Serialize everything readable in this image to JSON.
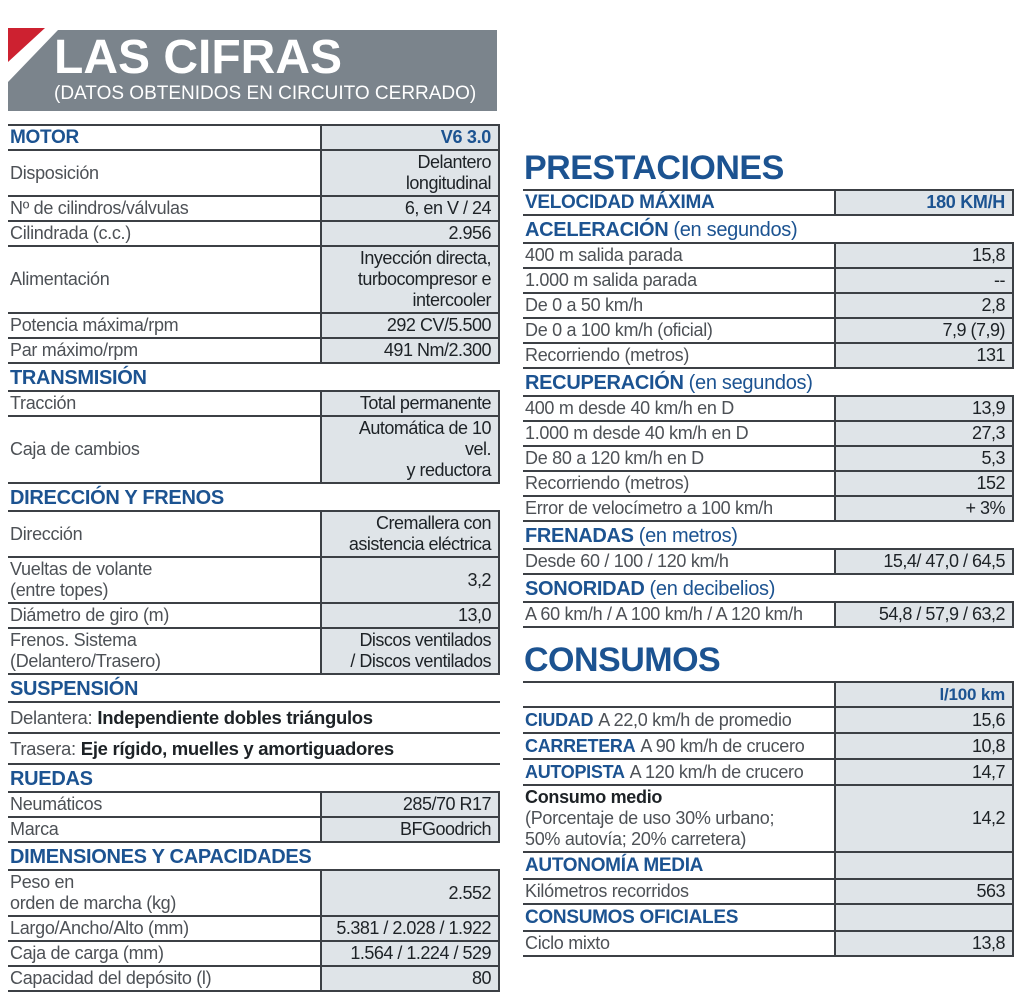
{
  "colors": {
    "accent_blue": "#1c5391",
    "masthead_gray": "#7b848c",
    "corner_red": "#cd2130",
    "cell_shade": "#dfe4e8",
    "rule_line": "#3c4045",
    "label_text": "#4d5156",
    "value_text": "#1d2226"
  },
  "masthead": {
    "title": "LAS CIFRAS",
    "subtitle": "(DATOS OBTENIDOS EN CIRCUITO CERRADO)"
  },
  "left": {
    "sections": [
      {
        "title": "MOTOR",
        "value": "V6 3.0",
        "rows": [
          {
            "label": "Disposición",
            "value": "Delantero longitudinal"
          },
          {
            "label": "Nº de cilindros/válvulas",
            "value": "6, en V / 24"
          },
          {
            "label": "Cilindrada (c.c.)",
            "value": "2.956"
          },
          {
            "label": "Alimentación",
            "value": "Inyección directa,\nturbocompresor e\nintercooler"
          },
          {
            "label": "Potencia máxima/rpm",
            "value": "292 CV/5.500"
          },
          {
            "label": "Par máximo/rpm",
            "value": "491 Nm/2.300"
          }
        ]
      },
      {
        "title": "TRANSMISIÓN",
        "rows": [
          {
            "label": "Tracción",
            "value": "Total permanente"
          },
          {
            "label": "Caja de cambios",
            "value": "Automática de 10 vel.\ny reductora"
          }
        ]
      },
      {
        "title": "DIRECCIÓN Y FRENOS",
        "rows": [
          {
            "label": "Dirección",
            "value": "Cremallera con\nasistencia eléctrica"
          },
          {
            "label": "Vueltas de volante\n(entre topes)",
            "value": "3,2"
          },
          {
            "label": "Diámetro de giro (m)",
            "value": "13,0"
          },
          {
            "label": "Frenos. Sistema\n(Delantero/Trasero)",
            "value": "Discos ventilados\n/ Discos ventilados"
          }
        ]
      },
      {
        "title": "SUSPENSIÓN",
        "full_rows": [
          {
            "prefix": "Delantera:",
            "text": "Independiente dobles triángulos"
          },
          {
            "prefix": "Trasera:",
            "text": "Eje rígido, muelles y amortiguadores"
          }
        ]
      },
      {
        "title": "RUEDAS",
        "rows": [
          {
            "label": "Neumáticos",
            "value": "285/70 R17"
          },
          {
            "label": "Marca",
            "value": "BFGoodrich"
          }
        ]
      },
      {
        "title": "DIMENSIONES Y CAPACIDADES",
        "rows": [
          {
            "label": "Peso en\norden de marcha (kg)",
            "value": "2.552"
          },
          {
            "label": "Largo/Ancho/Alto (mm)",
            "value": "5.381 / 2.028 / 1.922"
          },
          {
            "label": "Caja de carga (mm)",
            "value": "1.564 / 1.224 / 529"
          },
          {
            "label": "Capacidad del depósito (l)",
            "value": "80"
          }
        ]
      }
    ]
  },
  "prestaciones": {
    "title": "PRESTACIONES",
    "top_row": {
      "label": "VELOCIDAD MÁXIMA",
      "value": "180 KM/H"
    },
    "groups": [
      {
        "title": "ACELERACIÓN",
        "suffix": "(en segundos)",
        "rows": [
          {
            "label": "400 m salida parada",
            "value": "15,8"
          },
          {
            "label": "1.000 m salida parada",
            "value": "--"
          },
          {
            "label": "De 0 a 50 km/h",
            "value": "2,8"
          },
          {
            "label": "De 0 a 100 km/h (oficial)",
            "value": "7,9 (7,9)"
          },
          {
            "label": "Recorriendo (metros)",
            "value": "131"
          }
        ]
      },
      {
        "title": "RECUPERACIÓN",
        "suffix": "(en segundos)",
        "rows": [
          {
            "label": "400 m desde 40 km/h en D",
            "value": "13,9"
          },
          {
            "label": "1.000 m desde 40 km/h en D",
            "value": "27,3"
          },
          {
            "label": "De 80 a 120 km/h en D",
            "value": "5,3"
          },
          {
            "label": "Recorriendo (metros)",
            "value": "152"
          },
          {
            "label": "Error de velocímetro a 100 km/h",
            "value": "+ 3%"
          }
        ]
      },
      {
        "title": "FRENADAS",
        "suffix": "(en metros)",
        "rows": [
          {
            "label": "Desde 60 / 100 / 120 km/h",
            "value": "15,4/ 47,0 / 64,5"
          }
        ]
      },
      {
        "title": "SONORIDAD",
        "suffix": "(en decibelios)",
        "rows": [
          {
            "label": "A 60 km/h / A 100 km/h / A 120 km/h",
            "value": "54,8 / 57,9 / 63,2"
          }
        ]
      }
    ]
  },
  "consumos": {
    "title": "CONSUMOS",
    "unit": "l/100 km",
    "rows": [
      {
        "prefix": "CIUDAD",
        "label": "A 22,0 km/h de promedio",
        "value": "15,6"
      },
      {
        "prefix": "CARRETERA",
        "label": "A 90 km/h de crucero",
        "value": "10,8"
      },
      {
        "prefix": "AUTOPISTA",
        "label": "A 120 km/h de crucero",
        "value": "14,7"
      }
    ],
    "medio": {
      "label": "Consumo medio",
      "note": "(Porcentaje de uso 30% urbano;\n50% autovía; 20% carretera)",
      "value": "14,2"
    },
    "autonomia": {
      "title": "AUTONOMÍA MEDIA",
      "row": {
        "label": "Kilómetros recorridos",
        "value": "563"
      }
    },
    "oficiales": {
      "title": "CONSUMOS OFICIALES",
      "row": {
        "label": "Ciclo mixto",
        "value": "13,8"
      }
    }
  }
}
